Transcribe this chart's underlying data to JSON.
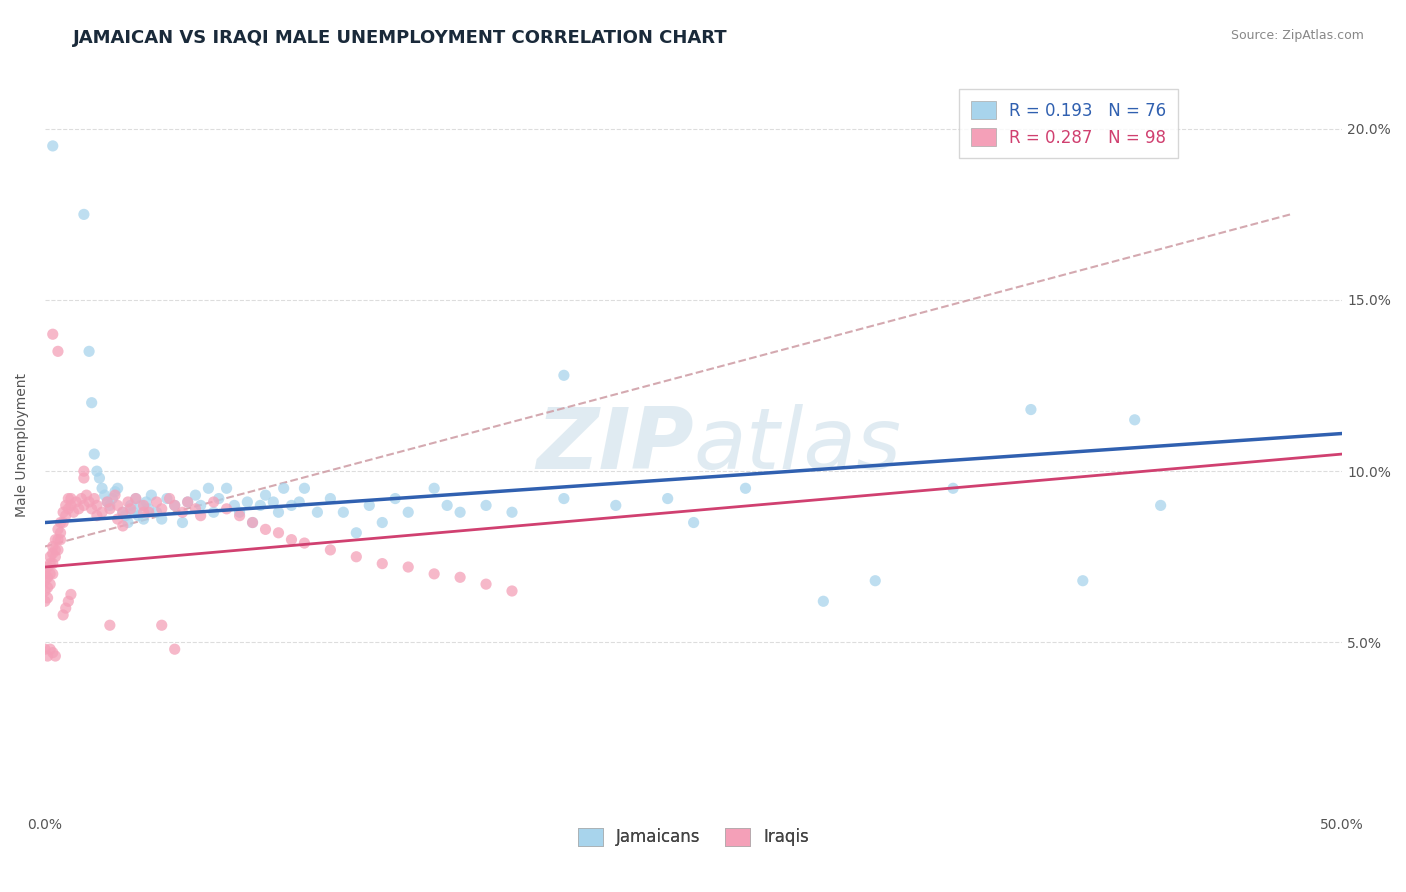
{
  "title": "JAMAICAN VS IRAQI MALE UNEMPLOYMENT CORRELATION CHART",
  "source": "Source: ZipAtlas.com",
  "ylabel": "Male Unemployment",
  "xlim": [
    0.0,
    0.5
  ],
  "ylim": [
    0.0,
    0.215
  ],
  "ytick_values": [
    0.05,
    0.1,
    0.15,
    0.2
  ],
  "ytick_labels": [
    "5.0%",
    "10.0%",
    "15.0%",
    "20.0%"
  ],
  "xtick_values": [
    0.0,
    0.5
  ],
  "xtick_labels": [
    "0.0%",
    "50.0%"
  ],
  "jamaican_color": "#a8d4ec",
  "iraqi_color": "#f4a0b8",
  "trendline_jamaican_color": "#3060b0",
  "trendline_iraqi_color": "#d04070",
  "trendline_dashed_color": "#d0a0a8",
  "jamaican_R": "0.193",
  "jamaican_N": "76",
  "iraqi_R": "0.287",
  "iraqi_N": "98",
  "title_color": "#1a2a3a",
  "source_color": "#888888",
  "ylabel_color": "#555555",
  "tick_color": "#555555",
  "grid_color": "#dddddd",
  "watermark_color": "#d8e8f0",
  "legend_edge_color": "#cccccc",
  "title_fontsize": 13,
  "axis_label_fontsize": 10,
  "tick_fontsize": 10,
  "legend_fontsize": 12,
  "source_fontsize": 9,
  "jamaican_x": [
    0.003,
    0.015,
    0.017,
    0.018,
    0.019,
    0.02,
    0.021,
    0.022,
    0.023,
    0.024,
    0.025,
    0.026,
    0.027,
    0.028,
    0.03,
    0.031,
    0.032,
    0.033,
    0.034,
    0.035,
    0.036,
    0.037,
    0.038,
    0.039,
    0.04,
    0.041,
    0.043,
    0.045,
    0.047,
    0.05,
    0.053,
    0.055,
    0.058,
    0.06,
    0.063,
    0.065,
    0.067,
    0.07,
    0.073,
    0.075,
    0.078,
    0.08,
    0.083,
    0.085,
    0.088,
    0.09,
    0.092,
    0.095,
    0.098,
    0.1,
    0.105,
    0.11,
    0.115,
    0.12,
    0.125,
    0.13,
    0.135,
    0.14,
    0.15,
    0.155,
    0.16,
    0.17,
    0.18,
    0.2,
    0.22,
    0.25,
    0.27,
    0.3,
    0.32,
    0.35,
    0.38,
    0.4,
    0.42,
    0.43,
    0.2,
    0.24
  ],
  "jamaican_y": [
    0.195,
    0.175,
    0.135,
    0.12,
    0.105,
    0.1,
    0.098,
    0.095,
    0.093,
    0.091,
    0.09,
    0.092,
    0.094,
    0.095,
    0.088,
    0.087,
    0.085,
    0.09,
    0.088,
    0.092,
    0.087,
    0.09,
    0.086,
    0.091,
    0.089,
    0.093,
    0.088,
    0.086,
    0.092,
    0.09,
    0.085,
    0.091,
    0.093,
    0.09,
    0.095,
    0.088,
    0.092,
    0.095,
    0.09,
    0.088,
    0.091,
    0.085,
    0.09,
    0.093,
    0.091,
    0.088,
    0.095,
    0.09,
    0.091,
    0.095,
    0.088,
    0.092,
    0.088,
    0.082,
    0.09,
    0.085,
    0.092,
    0.088,
    0.095,
    0.09,
    0.088,
    0.09,
    0.088,
    0.092,
    0.09,
    0.085,
    0.095,
    0.062,
    0.068,
    0.095,
    0.118,
    0.068,
    0.115,
    0.09,
    0.128,
    0.092
  ],
  "iraqi_x": [
    0.0,
    0.0,
    0.0,
    0.0,
    0.001,
    0.001,
    0.001,
    0.001,
    0.002,
    0.002,
    0.002,
    0.002,
    0.003,
    0.003,
    0.003,
    0.003,
    0.004,
    0.004,
    0.004,
    0.005,
    0.005,
    0.005,
    0.006,
    0.006,
    0.006,
    0.007,
    0.007,
    0.008,
    0.008,
    0.009,
    0.009,
    0.01,
    0.01,
    0.011,
    0.012,
    0.013,
    0.014,
    0.015,
    0.016,
    0.017,
    0.018,
    0.019,
    0.02,
    0.022,
    0.024,
    0.025,
    0.027,
    0.028,
    0.03,
    0.032,
    0.033,
    0.035,
    0.038,
    0.04,
    0.043,
    0.045,
    0.048,
    0.05,
    0.053,
    0.055,
    0.058,
    0.06,
    0.065,
    0.07,
    0.075,
    0.08,
    0.085,
    0.09,
    0.095,
    0.1,
    0.11,
    0.12,
    0.13,
    0.14,
    0.15,
    0.16,
    0.17,
    0.045,
    0.05,
    0.0,
    0.001,
    0.002,
    0.003,
    0.004,
    0.025,
    0.007,
    0.008,
    0.009,
    0.01,
    0.003,
    0.005,
    0.015,
    0.015,
    0.02,
    0.18,
    0.028,
    0.03,
    0.038
  ],
  "iraqi_y": [
    0.07,
    0.068,
    0.065,
    0.062,
    0.072,
    0.069,
    0.066,
    0.063,
    0.075,
    0.073,
    0.07,
    0.067,
    0.078,
    0.076,
    0.073,
    0.07,
    0.08,
    0.077,
    0.075,
    0.083,
    0.08,
    0.077,
    0.085,
    0.082,
    0.08,
    0.088,
    0.085,
    0.09,
    0.087,
    0.092,
    0.089,
    0.092,
    0.09,
    0.088,
    0.091,
    0.089,
    0.092,
    0.09,
    0.093,
    0.091,
    0.089,
    0.092,
    0.09,
    0.088,
    0.091,
    0.089,
    0.093,
    0.09,
    0.088,
    0.091,
    0.089,
    0.092,
    0.09,
    0.088,
    0.091,
    0.089,
    0.092,
    0.09,
    0.088,
    0.091,
    0.089,
    0.087,
    0.091,
    0.089,
    0.087,
    0.085,
    0.083,
    0.082,
    0.08,
    0.079,
    0.077,
    0.075,
    0.073,
    0.072,
    0.07,
    0.069,
    0.067,
    0.055,
    0.048,
    0.048,
    0.046,
    0.048,
    0.047,
    0.046,
    0.055,
    0.058,
    0.06,
    0.062,
    0.064,
    0.14,
    0.135,
    0.1,
    0.098,
    0.087,
    0.065,
    0.086,
    0.084,
    0.088
  ]
}
